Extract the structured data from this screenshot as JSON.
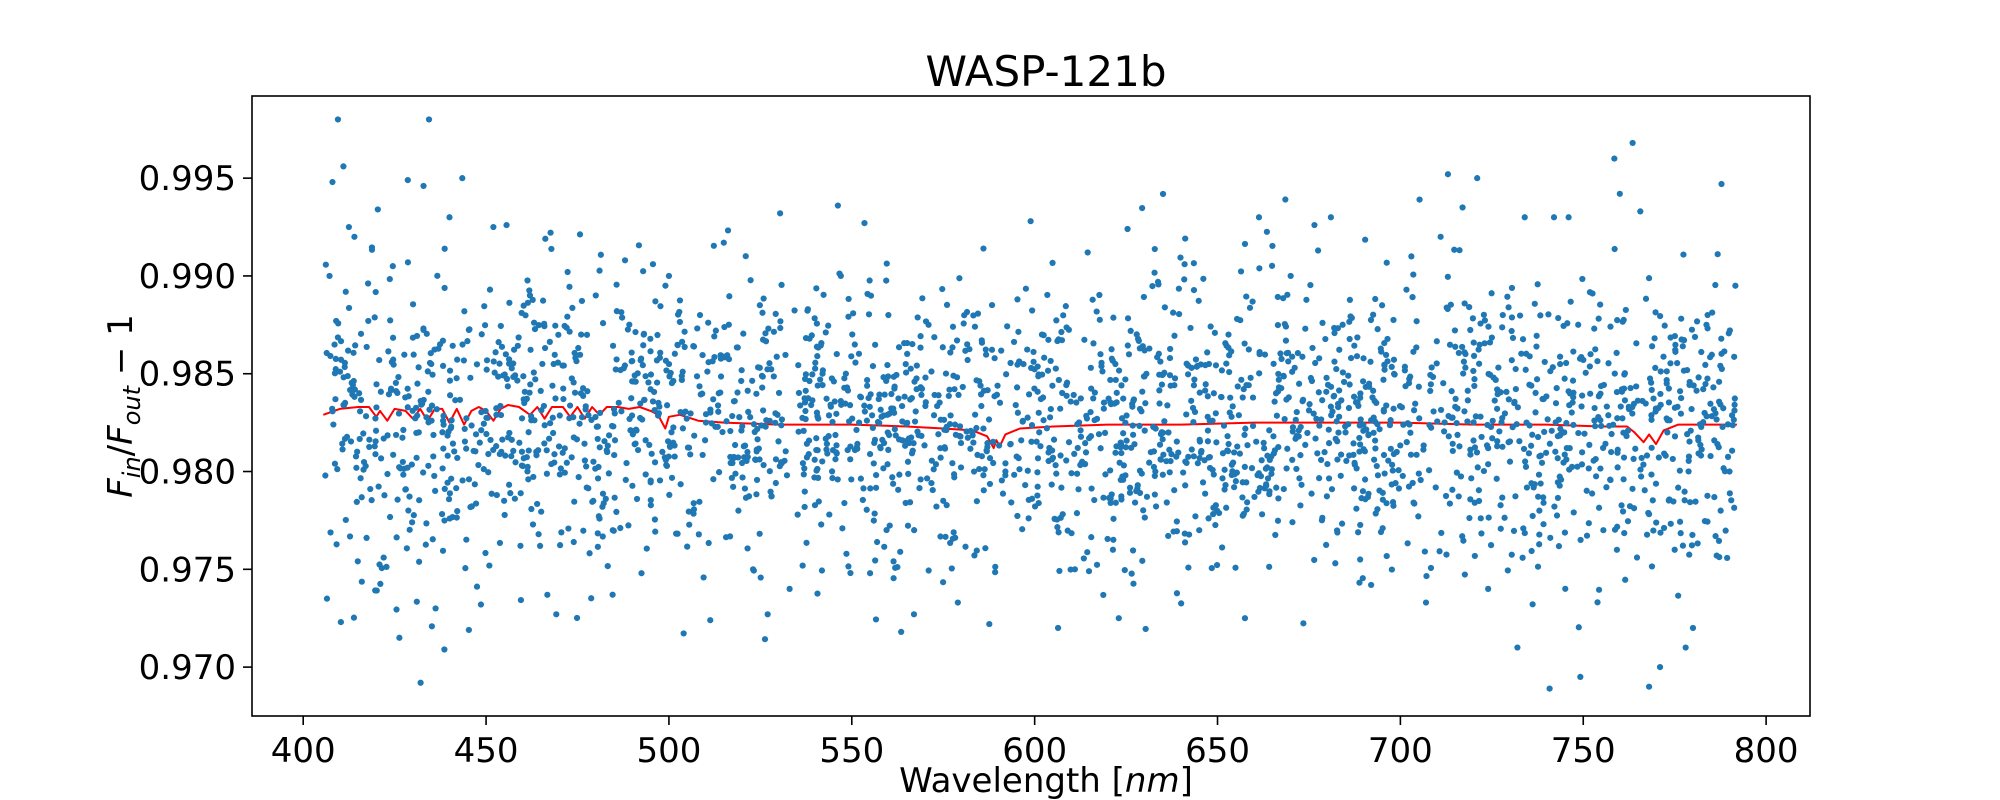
{
  "chart_data": {
    "type": "scatter",
    "title": "WASP-121b",
    "xlabel": "Wavelength [nm]",
    "ylabel": "F_in/F_out − 1",
    "xlim": [
      386,
      812
    ],
    "ylim": [
      0.9675,
      0.9992
    ],
    "x_ticks": [
      400,
      450,
      500,
      550,
      600,
      650,
      700,
      750,
      800
    ],
    "y_ticks": [
      0.97,
      0.975,
      0.98,
      0.985,
      0.99,
      0.995
    ],
    "x_tick_labels": [
      "400",
      "450",
      "500",
      "550",
      "600",
      "650",
      "700",
      "750",
      "800"
    ],
    "y_tick_labels": [
      "0.970",
      "0.975",
      "0.980",
      "0.985",
      "0.990",
      "0.995"
    ],
    "grid": false,
    "legend": "none",
    "colors": {
      "points": "#1f77b4",
      "model": "#ff0000",
      "axes": "#000000"
    },
    "series": [
      {
        "kind": "scatter",
        "description_points": "binned transit spectrum points scattered around 0.9825 between 406 and 792 nm",
        "x_range": [
          406,
          792
        ],
        "points": [
          [
            406.5,
            0.9735
          ],
          [
            407.2,
            0.99
          ],
          [
            408.0,
            0.9948
          ],
          [
            409.5,
            0.998
          ],
          [
            410.3,
            0.9723
          ],
          [
            411.0,
            0.9956
          ],
          [
            412.5,
            0.9925
          ],
          [
            414.0,
            0.992
          ],
          [
            415.3,
            0.984
          ],
          [
            417.8,
            0.9877
          ],
          [
            420.4,
            0.9934
          ],
          [
            422.0,
            0.9756
          ],
          [
            424.5,
            0.9905
          ],
          [
            426.3,
            0.9715
          ],
          [
            428.6,
            0.9949
          ],
          [
            431.0,
            0.9807
          ],
          [
            432.1,
            0.9692
          ],
          [
            432.9,
            0.9946
          ],
          [
            434.4,
            0.998
          ],
          [
            436.2,
            0.973
          ],
          [
            438.6,
            0.9709
          ],
          [
            440.0,
            0.993
          ],
          [
            443.5,
            0.995
          ],
          [
            445.3,
            0.9719
          ],
          [
            448.6,
            0.9732
          ],
          [
            452.0,
            0.9925
          ],
          [
            455.6,
            0.9926
          ],
          [
            459.4,
            0.9762
          ],
          [
            462.0,
            0.989
          ],
          [
            466.2,
            0.9919
          ],
          [
            469.2,
            0.9727
          ],
          [
            472.3,
            0.9902
          ],
          [
            476.0,
            0.987
          ],
          [
            480.0,
            0.989
          ],
          [
            484.6,
            0.9737
          ],
          [
            488.0,
            0.9908
          ],
          [
            492.5,
            0.9748
          ],
          [
            496.3,
            0.9887
          ],
          [
            500.0,
            0.99
          ],
          [
            504.0,
            0.983
          ],
          [
            508.5,
            0.988
          ],
          [
            511.3,
            0.9724
          ],
          [
            515.0,
            0.9917
          ],
          [
            519.0,
            0.978
          ],
          [
            523.0,
            0.975
          ],
          [
            527.0,
            0.9727
          ],
          [
            530.4,
            0.9932
          ],
          [
            533.0,
            0.974
          ],
          [
            538.0,
            0.9883
          ],
          [
            542.0,
            0.985
          ],
          [
            547.0,
            0.99
          ],
          [
            552.0,
            0.9825
          ],
          [
            555.0,
            0.9748
          ],
          [
            560.0,
            0.988
          ],
          [
            563.5,
            0.9718
          ],
          [
            567.0,
            0.9727
          ],
          [
            571.0,
            0.9875
          ],
          [
            575.0,
            0.9785
          ],
          [
            579.0,
            0.9733
          ],
          [
            583.0,
            0.982
          ],
          [
            586.0,
            0.9914
          ],
          [
            587.6,
            0.9722
          ],
          [
            592.0,
            0.98
          ],
          [
            595.3,
            0.9888
          ],
          [
            598.9,
            0.9928
          ],
          [
            602.0,
            0.987
          ],
          [
            606.4,
            0.972
          ],
          [
            611.0,
            0.975
          ],
          [
            614.5,
            0.9912
          ],
          [
            618.0,
            0.986
          ],
          [
            621.4,
            0.976
          ],
          [
            623.0,
            0.9725
          ],
          [
            625.4,
            0.9924
          ],
          [
            628.8,
            0.9832
          ],
          [
            633.0,
            0.98
          ],
          [
            637.0,
            0.9858
          ],
          [
            641.0,
            0.9906
          ],
          [
            645.0,
            0.977
          ],
          [
            649.0,
            0.984
          ],
          [
            653.0,
            0.987
          ],
          [
            657.5,
            0.9725
          ],
          [
            661.5,
            0.986
          ],
          [
            666.0,
            0.984
          ],
          [
            670.0,
            0.99
          ],
          [
            674.0,
            0.9873
          ],
          [
            677.5,
            0.9913
          ],
          [
            681.0,
            0.993
          ],
          [
            685.0,
            0.982
          ],
          [
            689.0,
            0.9755
          ],
          [
            692.0,
            0.9742
          ],
          [
            695.0,
            0.9885
          ],
          [
            699.0,
            0.981
          ],
          [
            703.0,
            0.991
          ],
          [
            707.0,
            0.9733
          ],
          [
            711.0,
            0.992
          ],
          [
            713.0,
            0.9952
          ],
          [
            717.0,
            0.9935
          ],
          [
            721.0,
            0.995
          ],
          [
            724.0,
            0.974
          ],
          [
            728.0,
            0.988
          ],
          [
            732.0,
            0.971
          ],
          [
            734.0,
            0.993
          ],
          [
            738.0,
            0.978
          ],
          [
            740.8,
            0.9689
          ],
          [
            742.0,
            0.993
          ],
          [
            746.0,
            0.993
          ],
          [
            749.2,
            0.9695
          ],
          [
            752.0,
            0.986
          ],
          [
            755.5,
            0.977
          ],
          [
            758.5,
            0.996
          ],
          [
            760.0,
            0.9942
          ],
          [
            763.5,
            0.9968
          ],
          [
            765.6,
            0.9933
          ],
          [
            768.0,
            0.969
          ],
          [
            771.0,
            0.97
          ],
          [
            773.0,
            0.982
          ],
          [
            775.0,
            0.976
          ],
          [
            778.0,
            0.971
          ],
          [
            780.0,
            0.972
          ],
          [
            784.0,
            0.988
          ],
          [
            787.8,
            0.9947
          ],
          [
            790.0,
            0.98
          ],
          [
            791.6,
            0.9895
          ]
        ]
      },
      {
        "kind": "line",
        "description_model": "model transmission spectrum",
        "points": [
          [
            405.5,
            0.9829
          ],
          [
            410,
            0.9832
          ],
          [
            415,
            0.9833
          ],
          [
            418,
            0.9833
          ],
          [
            420,
            0.9828
          ],
          [
            421,
            0.9831
          ],
          [
            423,
            0.9826
          ],
          [
            425,
            0.9832
          ],
          [
            428,
            0.9831
          ],
          [
            430,
            0.9827
          ],
          [
            432,
            0.9832
          ],
          [
            434,
            0.9826
          ],
          [
            436,
            0.9832
          ],
          [
            438,
            0.9832
          ],
          [
            440,
            0.9825
          ],
          [
            442,
            0.9832
          ],
          [
            444,
            0.9824
          ],
          [
            446,
            0.9831
          ],
          [
            448,
            0.9833
          ],
          [
            450,
            0.9831
          ],
          [
            452,
            0.9826
          ],
          [
            454,
            0.9832
          ],
          [
            456,
            0.9834
          ],
          [
            459,
            0.9833
          ],
          [
            462,
            0.9829
          ],
          [
            464,
            0.9833
          ],
          [
            466,
            0.9827
          ],
          [
            468,
            0.9833
          ],
          [
            471,
            0.9833
          ],
          [
            473,
            0.9828
          ],
          [
            475,
            0.9833
          ],
          [
            477,
            0.9827
          ],
          [
            479,
            0.9833
          ],
          [
            481,
            0.9829
          ],
          [
            483,
            0.9833
          ],
          [
            486,
            0.9833
          ],
          [
            489,
            0.9832
          ],
          [
            492,
            0.9833
          ],
          [
            495,
            0.9831
          ],
          [
            497,
            0.9829
          ],
          [
            499,
            0.9822
          ],
          [
            500,
            0.9828
          ],
          [
            503,
            0.9829
          ],
          [
            508,
            0.9826
          ],
          [
            515,
            0.9825
          ],
          [
            530,
            0.9824
          ],
          [
            550,
            0.9824
          ],
          [
            565,
            0.9823
          ],
          [
            575,
            0.9822
          ],
          [
            583,
            0.9821
          ],
          [
            587,
            0.9818
          ],
          [
            588.8,
            0.9812
          ],
          [
            589.5,
            0.9816
          ],
          [
            590.5,
            0.9813
          ],
          [
            592,
            0.9819
          ],
          [
            596,
            0.9822
          ],
          [
            605,
            0.9823
          ],
          [
            620,
            0.9824
          ],
          [
            640,
            0.9824
          ],
          [
            660,
            0.9825
          ],
          [
            680,
            0.9825
          ],
          [
            700,
            0.9825
          ],
          [
            720,
            0.9824
          ],
          [
            740,
            0.9824
          ],
          [
            755,
            0.9823
          ],
          [
            762,
            0.9823
          ],
          [
            764,
            0.982
          ],
          [
            766.5,
            0.9815
          ],
          [
            768,
            0.9819
          ],
          [
            769.9,
            0.9814
          ],
          [
            772,
            0.9821
          ],
          [
            776,
            0.9824
          ],
          [
            785,
            0.9824
          ],
          [
            792,
            0.9824
          ]
        ]
      }
    ]
  }
}
